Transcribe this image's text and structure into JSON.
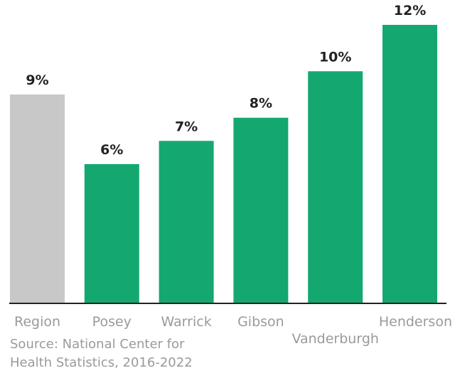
{
  "chart_data": {
    "type": "bar",
    "categories": [
      "Region",
      "Posey",
      "Warrick",
      "Gibson",
      "Vanderburgh",
      "Henderson"
    ],
    "values": [
      9,
      6,
      7,
      8,
      10,
      12
    ],
    "value_labels": [
      "9%",
      "6%",
      "7%",
      "8%",
      "10%",
      "12%"
    ],
    "bar_colors": [
      "#c8c8c8",
      "#14a870",
      "#14a870",
      "#14a870",
      "#14a870",
      "#14a870"
    ],
    "ylim": [
      0,
      12
    ],
    "grid": false,
    "title": "",
    "xlabel": "",
    "ylabel": ""
  },
  "source": {
    "line1": "Source: National Center for",
    "line2": "Health Statistics, 2016-2022"
  },
  "colors": {
    "baseline": "#222222",
    "tick_text": "#9a9a9a",
    "value_text": "#222222"
  }
}
